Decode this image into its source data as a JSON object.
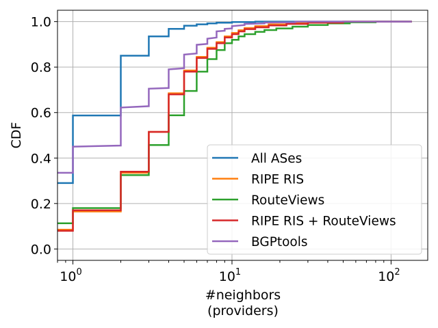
{
  "chart_data": {
    "type": "line",
    "step": true,
    "xlabel_line1": "#neighbors",
    "xlabel_line2": "(providers)",
    "ylabel": "CDF",
    "xscale": "log",
    "xlim": [
      0.8,
      170
    ],
    "ylim": [
      -0.05,
      1.05
    ],
    "x_ticks": [
      {
        "value": 1,
        "base": "10",
        "exp": "0"
      },
      {
        "value": 10,
        "base": "10",
        "exp": "1"
      },
      {
        "value": 100,
        "base": "10",
        "exp": "2"
      }
    ],
    "y_ticks": [
      {
        "value": 0.0,
        "label": "0.0"
      },
      {
        "value": 0.2,
        "label": "0.2"
      },
      {
        "value": 0.4,
        "label": "0.4"
      },
      {
        "value": 0.6,
        "label": "0.6"
      },
      {
        "value": 0.8,
        "label": "0.8"
      },
      {
        "value": 1.0,
        "label": "1.0"
      }
    ],
    "grid": true,
    "legend_position": "lower-right",
    "series": [
      {
        "name": "All ASes",
        "color": "#1f77b4",
        "points": [
          [
            0.8,
            0.29
          ],
          [
            1,
            0.29
          ],
          [
            1,
            0.587
          ],
          [
            2,
            0.587
          ],
          [
            2,
            0.85
          ],
          [
            3,
            0.85
          ],
          [
            3,
            0.935
          ],
          [
            4,
            0.935
          ],
          [
            4,
            0.968
          ],
          [
            5,
            0.968
          ],
          [
            5,
            0.982
          ],
          [
            6,
            0.982
          ],
          [
            6,
            0.988
          ],
          [
            7,
            0.988
          ],
          [
            7,
            0.992
          ],
          [
            8,
            0.992
          ],
          [
            8,
            0.995
          ],
          [
            10,
            0.995
          ],
          [
            10,
            0.998
          ],
          [
            14,
            0.998
          ],
          [
            14,
            1.0
          ],
          [
            135,
            1.0
          ]
        ]
      },
      {
        "name": "RIPE RIS",
        "color": "#ff7f0e",
        "points": [
          [
            0.8,
            0.085
          ],
          [
            1,
            0.085
          ],
          [
            1,
            0.165
          ],
          [
            2,
            0.165
          ],
          [
            2,
            0.335
          ],
          [
            3,
            0.335
          ],
          [
            3,
            0.515
          ],
          [
            4,
            0.515
          ],
          [
            4,
            0.685
          ],
          [
            5,
            0.685
          ],
          [
            5,
            0.785
          ],
          [
            6,
            0.785
          ],
          [
            6,
            0.845
          ],
          [
            7,
            0.845
          ],
          [
            7,
            0.885
          ],
          [
            8,
            0.885
          ],
          [
            8,
            0.91
          ],
          [
            9,
            0.91
          ],
          [
            9,
            0.935
          ],
          [
            10,
            0.935
          ],
          [
            10,
            0.95
          ],
          [
            11,
            0.95
          ],
          [
            11,
            0.962
          ],
          [
            12,
            0.962
          ],
          [
            12,
            0.972
          ],
          [
            14,
            0.972
          ],
          [
            14,
            0.98
          ],
          [
            17,
            0.98
          ],
          [
            17,
            0.988
          ],
          [
            22,
            0.988
          ],
          [
            22,
            0.993
          ],
          [
            30,
            0.993
          ],
          [
            30,
            0.997
          ],
          [
            50,
            0.997
          ],
          [
            50,
            1.0
          ],
          [
            135,
            1.0
          ]
        ]
      },
      {
        "name": "RouteViews",
        "color": "#2ca02c",
        "points": [
          [
            0.8,
            0.113
          ],
          [
            1,
            0.113
          ],
          [
            1,
            0.18
          ],
          [
            2,
            0.18
          ],
          [
            2,
            0.325
          ],
          [
            3,
            0.325
          ],
          [
            3,
            0.457
          ],
          [
            4,
            0.457
          ],
          [
            4,
            0.588
          ],
          [
            5,
            0.588
          ],
          [
            5,
            0.695
          ],
          [
            6,
            0.695
          ],
          [
            6,
            0.78
          ],
          [
            7,
            0.78
          ],
          [
            7,
            0.835
          ],
          [
            8,
            0.835
          ],
          [
            8,
            0.875
          ],
          [
            9,
            0.875
          ],
          [
            9,
            0.905
          ],
          [
            10,
            0.905
          ],
          [
            10,
            0.92
          ],
          [
            11,
            0.92
          ],
          [
            11,
            0.935
          ],
          [
            12,
            0.935
          ],
          [
            12,
            0.945
          ],
          [
            14,
            0.945
          ],
          [
            14,
            0.955
          ],
          [
            16,
            0.955
          ],
          [
            16,
            0.963
          ],
          [
            19,
            0.963
          ],
          [
            19,
            0.97
          ],
          [
            24,
            0.97
          ],
          [
            24,
            0.978
          ],
          [
            30,
            0.978
          ],
          [
            30,
            0.985
          ],
          [
            40,
            0.985
          ],
          [
            40,
            0.992
          ],
          [
            55,
            0.992
          ],
          [
            55,
            0.997
          ],
          [
            80,
            0.997
          ],
          [
            80,
            1.0
          ],
          [
            135,
            1.0
          ]
        ]
      },
      {
        "name": "RIPE RIS + RouteViews",
        "color": "#d62728",
        "points": [
          [
            0.8,
            0.08
          ],
          [
            1,
            0.08
          ],
          [
            1,
            0.17
          ],
          [
            2,
            0.17
          ],
          [
            2,
            0.34
          ],
          [
            3,
            0.34
          ],
          [
            3,
            0.515
          ],
          [
            4,
            0.515
          ],
          [
            4,
            0.68
          ],
          [
            5,
            0.68
          ],
          [
            5,
            0.78
          ],
          [
            6,
            0.78
          ],
          [
            6,
            0.84
          ],
          [
            7,
            0.84
          ],
          [
            7,
            0.88
          ],
          [
            8,
            0.88
          ],
          [
            8,
            0.905
          ],
          [
            9,
            0.905
          ],
          [
            9,
            0.93
          ],
          [
            10,
            0.93
          ],
          [
            10,
            0.945
          ],
          [
            11,
            0.945
          ],
          [
            11,
            0.957
          ],
          [
            12,
            0.957
          ],
          [
            12,
            0.967
          ],
          [
            14,
            0.967
          ],
          [
            14,
            0.975
          ],
          [
            17,
            0.975
          ],
          [
            17,
            0.983
          ],
          [
            22,
            0.983
          ],
          [
            22,
            0.99
          ],
          [
            30,
            0.99
          ],
          [
            30,
            0.995
          ],
          [
            50,
            0.995
          ],
          [
            50,
            1.0
          ],
          [
            135,
            1.0
          ]
        ]
      },
      {
        "name": "BGPtools",
        "color": "#9467bd",
        "points": [
          [
            0.8,
            0.335
          ],
          [
            1,
            0.335
          ],
          [
            1,
            0.45
          ],
          [
            2,
            0.455
          ],
          [
            2,
            0.622
          ],
          [
            3,
            0.628
          ],
          [
            3,
            0.705
          ],
          [
            4,
            0.708
          ],
          [
            4,
            0.79
          ],
          [
            5,
            0.795
          ],
          [
            5,
            0.855
          ],
          [
            6,
            0.86
          ],
          [
            6,
            0.898
          ],
          [
            7,
            0.902
          ],
          [
            7,
            0.925
          ],
          [
            8,
            0.93
          ],
          [
            8,
            0.957
          ],
          [
            9,
            0.96
          ],
          [
            9,
            0.968
          ],
          [
            10,
            0.97
          ],
          [
            10,
            0.98
          ],
          [
            12,
            0.985
          ],
          [
            12,
            0.99
          ],
          [
            16,
            0.992
          ],
          [
            16,
            0.996
          ],
          [
            25,
            0.997
          ],
          [
            25,
            1.0
          ],
          [
            135,
            1.0
          ]
        ]
      }
    ]
  }
}
